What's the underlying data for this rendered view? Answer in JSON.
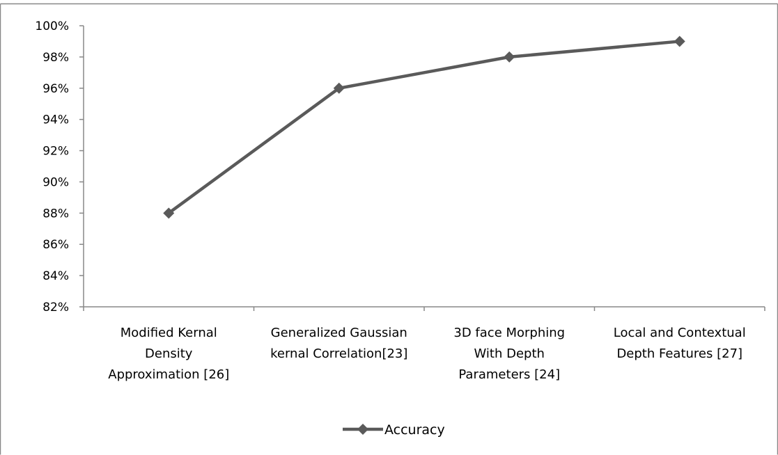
{
  "chart_data": {
    "type": "line",
    "categories": [
      [
        "Modified Kernal",
        "Density",
        "Approximation [26]"
      ],
      [
        "Generalized Gaussian",
        "kernal Correlation[23]"
      ],
      [
        "3D face Morphing",
        "With Depth",
        "Parameters [24]"
      ],
      [
        "Local and Contextual",
        "Depth Features [27]"
      ]
    ],
    "series": [
      {
        "name": "Accuracy",
        "values": [
          88,
          96,
          98,
          99
        ]
      }
    ],
    "ylim": [
      82,
      100
    ],
    "yticks": [
      82,
      84,
      86,
      88,
      90,
      92,
      94,
      96,
      98,
      100
    ],
    "ytick_suffix": "%",
    "grid": false,
    "legend": "bottom",
    "marker": "diamond",
    "line_color": "#5a5a5a",
    "axis_color": "#888888",
    "frame_color": "#888888"
  }
}
